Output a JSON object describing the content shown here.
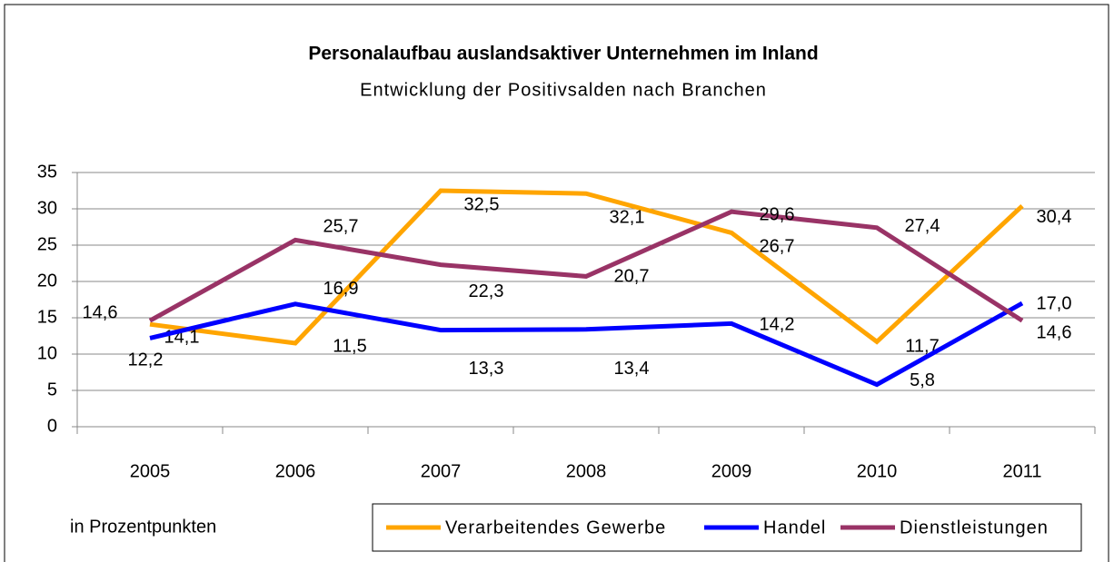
{
  "chart_data": {
    "type": "line",
    "title": "Personalaufbau auslandsaktiver Unternehmen im Inland",
    "subtitle": "Entwicklung der Positivsalden nach Branchen",
    "note": "in Prozentpunkten",
    "categories": [
      "2005",
      "2006",
      "2007",
      "2008",
      "2009",
      "2010",
      "2011"
    ],
    "series": [
      {
        "name": "Verarbeitendes Gewerbe",
        "color": "#ffa500",
        "values": [
          14.1,
          11.5,
          32.5,
          32.1,
          26.7,
          11.7,
          30.4
        ],
        "value_labels": [
          "14,1",
          "11,5",
          "32,5",
          "32,1",
          "26,7",
          "11,7",
          "30,4"
        ]
      },
      {
        "name": "Handel",
        "color": "#0000ff",
        "values": [
          12.2,
          16.9,
          13.3,
          13.4,
          14.2,
          5.8,
          17.0
        ],
        "value_labels": [
          "12,2",
          "16,9",
          "13,3",
          "13,4",
          "14,2",
          "5,8",
          "17,0"
        ]
      },
      {
        "name": "Dienstleistungen",
        "color": "#993366",
        "values": [
          14.6,
          25.7,
          22.3,
          20.7,
          29.6,
          27.4,
          14.6
        ],
        "value_labels": [
          "14,6",
          "25,7",
          "22,3",
          "20,7",
          "29,6",
          "27,4",
          "14,6"
        ]
      }
    ],
    "ylim": [
      0,
      35
    ],
    "yticks": [
      0,
      5,
      10,
      15,
      20,
      25,
      30,
      35
    ],
    "grid": true,
    "legend": "bottom"
  }
}
